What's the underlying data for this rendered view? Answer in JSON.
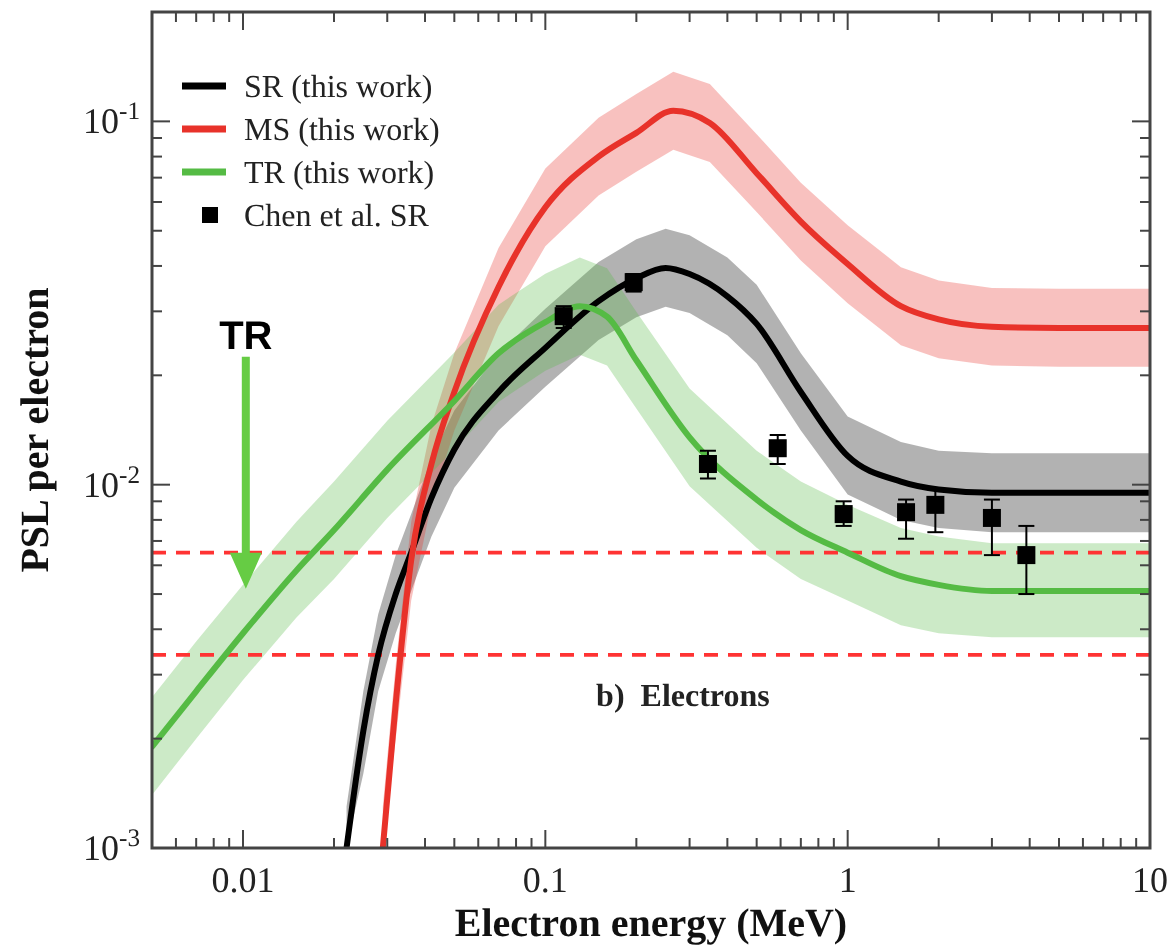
{
  "chart_data": {
    "type": "line",
    "xlabel": "Electron energy (MeV)",
    "ylabel": "PSL per electron",
    "log": "xy",
    "legend": "top left",
    "xlim": [
      0.005,
      10
    ],
    "ylim": [
      0.001,
      0.2
    ],
    "xticks": [
      {
        "value": 0.006,
        "label": null
      },
      {
        "value": 0.007,
        "label": null
      },
      {
        "value": 0.008,
        "label": null
      },
      {
        "value": 0.009,
        "label": null
      },
      0.01,
      {
        "value": 0.02,
        "label": null
      },
      {
        "value": 0.03,
        "label": null
      },
      {
        "value": 0.04,
        "label": null
      },
      {
        "value": 0.05,
        "label": null
      },
      {
        "value": 0.06,
        "label": null
      },
      {
        "value": 0.07,
        "label": null
      },
      {
        "value": 0.08,
        "label": null
      },
      {
        "value": 0.09,
        "label": null
      },
      0.1,
      {
        "value": 0.2,
        "label": null
      },
      {
        "value": 0.3,
        "label": null
      },
      {
        "value": 0.4,
        "label": null
      },
      {
        "value": 0.5,
        "label": null
      },
      {
        "value": 0.6,
        "label": null
      },
      {
        "value": 0.7,
        "label": null
      },
      {
        "value": 0.8,
        "label": null
      },
      {
        "value": 0.9,
        "label": null
      },
      1,
      {
        "value": 2,
        "label": null
      },
      {
        "value": 3,
        "label": null
      },
      {
        "value": 4,
        "label": null
      },
      {
        "value": 5,
        "label": null
      },
      {
        "value": 6,
        "label": null
      },
      {
        "value": 7,
        "label": null
      },
      {
        "value": 8,
        "label": null
      },
      {
        "value": 9,
        "label": null
      },
      10
    ],
    "yticks": [
      {
        "value": 0.001,
        "label": "10$^{-3}$"
      },
      {
        "value": 0.002,
        "label": null
      },
      {
        "value": 0.003,
        "label": null
      },
      {
        "value": 0.004,
        "label": null
      },
      {
        "value": 0.005,
        "label": null
      },
      {
        "value": 0.006,
        "label": null
      },
      {
        "value": 0.007,
        "label": null
      },
      {
        "value": 0.008,
        "label": null
      },
      {
        "value": 0.009,
        "label": null
      },
      {
        "value": 0.01,
        "label": "10$^{-2}$"
      },
      {
        "value": 0.02,
        "label": null
      },
      {
        "value": 0.03,
        "label": null
      },
      {
        "value": 0.04,
        "label": null
      },
      {
        "value": 0.05,
        "label": null
      },
      {
        "value": 0.06,
        "label": null
      },
      {
        "value": 0.07,
        "label": null
      },
      {
        "value": 0.08,
        "label": null
      },
      {
        "value": 0.09,
        "label": null
      },
      {
        "value": 0.1,
        "label": "10$^{-1}$"
      },
      {
        "value": 0.2,
        "label": null
      }
    ],
    "ref_lines": [
      {
        "axis": "y",
        "value": 0.0065,
        "color": "#ff3333",
        "line_style": "dashed"
      },
      {
        "axis": "y",
        "value": 0.0034,
        "color": "#ff3333",
        "line_style": "dashed"
      }
    ],
    "annotations": [
      "TR",
      "b)  Electrons"
    ],
    "series": [
      {
        "name": "SR (this work)",
        "color": "#000000",
        "x": [
          0.022,
          0.025,
          0.028,
          0.032,
          0.036,
          0.042,
          0.05,
          0.07,
          0.1,
          0.15,
          0.2,
          0.25,
          0.3,
          0.4,
          0.5,
          0.7,
          1,
          1.5,
          2,
          3,
          5,
          10
        ],
        "values": [
          0.001,
          0.0021,
          0.0034,
          0.005,
          0.0065,
          0.0092,
          0.0125,
          0.018,
          0.0238,
          0.032,
          0.037,
          0.0395,
          0.038,
          0.033,
          0.0277,
          0.018,
          0.012,
          0.0102,
          0.0097,
          0.0095,
          0.0095,
          0.0095
        ],
        "lower": [
          0.001,
          0.0016,
          0.0027,
          0.0039,
          0.0051,
          0.0072,
          0.0098,
          0.0141,
          0.0186,
          0.025,
          0.0289,
          0.0309,
          0.0297,
          0.0258,
          0.0216,
          0.0141,
          0.0094,
          0.008,
          0.0076,
          0.0074,
          0.0074,
          0.0074
        ],
        "upper": [
          0.0013,
          0.0027,
          0.0044,
          0.0064,
          0.0083,
          0.0118,
          0.016,
          0.023,
          0.0305,
          0.041,
          0.0474,
          0.0506,
          0.0486,
          0.0422,
          0.0355,
          0.023,
          0.0154,
          0.0131,
          0.0124,
          0.0122,
          0.0122,
          0.0122
        ]
      },
      {
        "name": "MS (this work)",
        "color": "#e8322a",
        "x": [
          0.029,
          0.032,
          0.036,
          0.042,
          0.05,
          0.07,
          0.1,
          0.15,
          0.2,
          0.265,
          0.35,
          0.5,
          0.7,
          1,
          1.5,
          2,
          3,
          5,
          10
        ],
        "values": [
          0.001,
          0.0025,
          0.0062,
          0.0114,
          0.018,
          0.035,
          0.058,
          0.08,
          0.093,
          0.107,
          0.099,
          0.072,
          0.053,
          0.0405,
          0.031,
          0.0285,
          0.0272,
          0.027,
          0.027
        ],
        "lower": [
          0.001,
          0.002,
          0.0048,
          0.0089,
          0.0141,
          0.0273,
          0.0453,
          0.0625,
          0.0727,
          0.0836,
          0.0773,
          0.0563,
          0.0414,
          0.0316,
          0.0242,
          0.0223,
          0.0213,
          0.0211,
          0.0211
        ],
        "upper": [
          0.0013,
          0.0032,
          0.0079,
          0.0146,
          0.023,
          0.0448,
          0.0742,
          0.1024,
          0.119,
          0.137,
          0.1267,
          0.0922,
          0.0678,
          0.0518,
          0.0397,
          0.0365,
          0.0348,
          0.0346,
          0.0346
        ]
      },
      {
        "name": "TR (this work)",
        "color": "#55bb44",
        "x": [
          0.005,
          0.007,
          0.01,
          0.015,
          0.02,
          0.03,
          0.05,
          0.07,
          0.1,
          0.13,
          0.16,
          0.2,
          0.3,
          0.5,
          0.7,
          1,
          1.5,
          2,
          3,
          5,
          10
        ],
        "values": [
          0.0019,
          0.0027,
          0.0039,
          0.0058,
          0.0075,
          0.011,
          0.017,
          0.023,
          0.028,
          0.031,
          0.029,
          0.022,
          0.0135,
          0.0091,
          0.0075,
          0.0065,
          0.0056,
          0.0053,
          0.0051,
          0.0051,
          0.0051
        ],
        "lower": [
          0.0014,
          0.002,
          0.0029,
          0.0043,
          0.0055,
          0.0081,
          0.0125,
          0.0169,
          0.0206,
          0.0228,
          0.0213,
          0.0162,
          0.0099,
          0.0067,
          0.0055,
          0.0048,
          0.0041,
          0.0039,
          0.0038,
          0.0038,
          0.0038
        ],
        "upper": [
          0.0026,
          0.0037,
          0.0053,
          0.0079,
          0.0102,
          0.015,
          0.0231,
          0.0313,
          0.0381,
          0.0422,
          0.0394,
          0.0299,
          0.0184,
          0.0124,
          0.0102,
          0.0088,
          0.0076,
          0.0072,
          0.0069,
          0.0069,
          0.0069
        ]
      },
      {
        "name": "Chen et al. SR",
        "type": "scatter",
        "marker": "square",
        "color": "#000000",
        "x": [
          0.115,
          0.196,
          0.345,
          0.587,
          0.97,
          1.56,
          1.95,
          3.0,
          3.9
        ],
        "values": [
          0.0291,
          0.0361,
          0.0114,
          0.0126,
          0.0083,
          0.0084,
          0.0088,
          0.0081,
          0.0064
        ],
        "errors": [
          [
            0.027,
            0.031
          ],
          [
            0.034,
            0.038
          ],
          [
            0.0104,
            0.0124
          ],
          [
            0.0114,
            0.0137
          ],
          [
            0.0077,
            0.009
          ],
          [
            0.0071,
            0.0091
          ],
          [
            0.0074,
            0.0097
          ],
          [
            0.0064,
            0.0091
          ],
          [
            0.005,
            0.0077
          ]
        ]
      }
    ]
  }
}
